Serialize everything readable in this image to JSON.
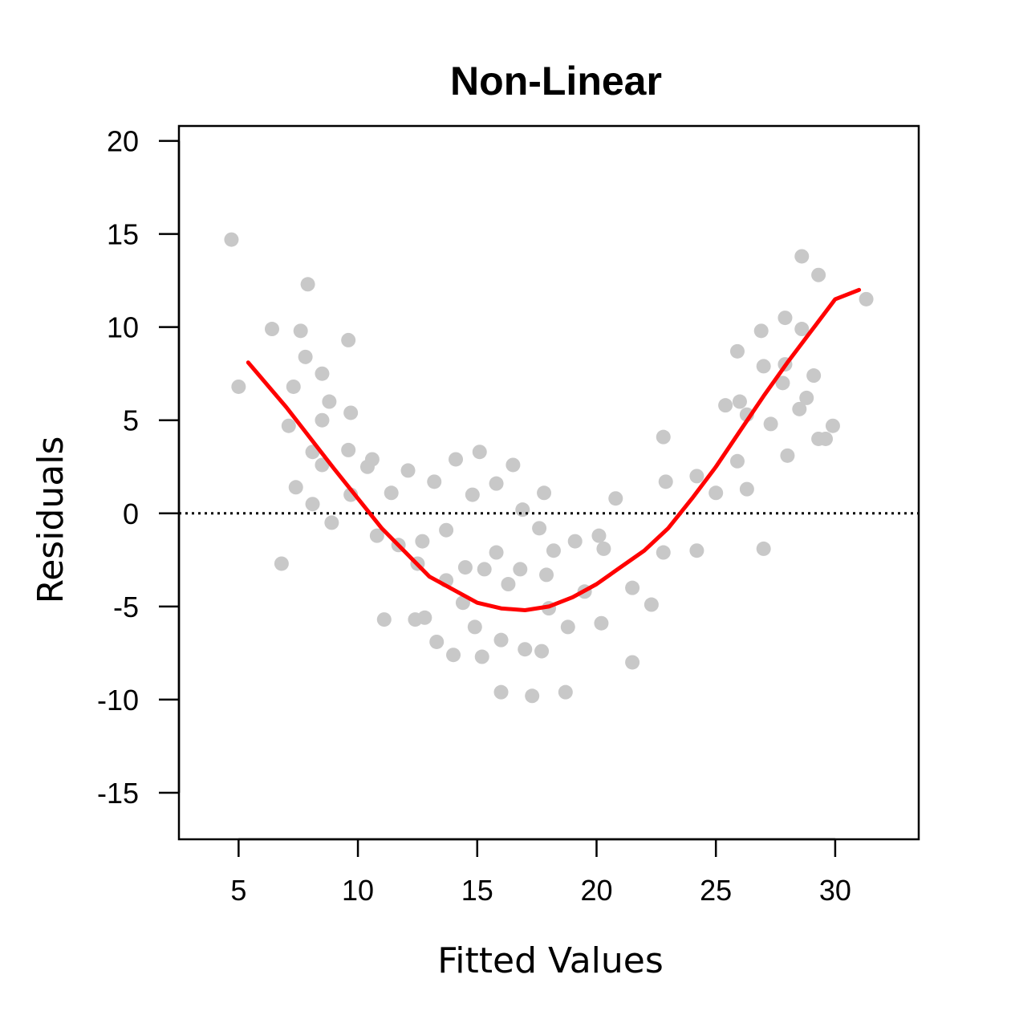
{
  "chart_data": {
    "type": "scatter",
    "title": "Non-Linear",
    "xlabel": "Fitted Values",
    "ylabel": "Residuals",
    "xlim": [
      2.5,
      33.5
    ],
    "ylim": [
      -17.5,
      20.8
    ],
    "x_ticks": [
      5,
      10,
      15,
      20,
      25,
      30
    ],
    "x_tick_labels": [
      "5",
      "10",
      "15",
      "20",
      "25",
      "30"
    ],
    "y_ticks": [
      -15,
      -10,
      -5,
      0,
      5,
      10,
      15,
      20
    ],
    "y_tick_labels": [
      "-15",
      "-10",
      "-5",
      "0",
      "5",
      "10",
      "15",
      "20"
    ],
    "grid": false,
    "legend": "none",
    "reference_line": {
      "y": 0,
      "style": "dotted",
      "color": "#000000"
    },
    "colors": {
      "points": "#c8c8c8",
      "smooth": "#ff0000",
      "axis": "#000000"
    },
    "points": [
      {
        "x": 4.7,
        "y": 14.7
      },
      {
        "x": 5.0,
        "y": 6.8
      },
      {
        "x": 6.4,
        "y": 9.9
      },
      {
        "x": 6.8,
        "y": -2.7
      },
      {
        "x": 7.1,
        "y": 4.7
      },
      {
        "x": 7.3,
        "y": 6.8
      },
      {
        "x": 7.4,
        "y": 1.4
      },
      {
        "x": 7.6,
        "y": 9.8
      },
      {
        "x": 7.8,
        "y": 8.4
      },
      {
        "x": 7.9,
        "y": 12.3
      },
      {
        "x": 8.1,
        "y": 3.3
      },
      {
        "x": 8.1,
        "y": 0.5
      },
      {
        "x": 8.5,
        "y": 7.5
      },
      {
        "x": 8.5,
        "y": 5.0
      },
      {
        "x": 8.5,
        "y": 2.6
      },
      {
        "x": 8.8,
        "y": 6.0
      },
      {
        "x": 8.9,
        "y": -0.5
      },
      {
        "x": 9.6,
        "y": 9.3
      },
      {
        "x": 9.6,
        "y": 3.4
      },
      {
        "x": 9.7,
        "y": 5.4
      },
      {
        "x": 9.7,
        "y": 1.0
      },
      {
        "x": 10.4,
        "y": 2.5
      },
      {
        "x": 10.6,
        "y": 2.9
      },
      {
        "x": 10.8,
        "y": -1.2
      },
      {
        "x": 11.1,
        "y": -5.7
      },
      {
        "x": 11.4,
        "y": 1.1
      },
      {
        "x": 11.7,
        "y": -1.7
      },
      {
        "x": 12.1,
        "y": 2.3
      },
      {
        "x": 12.4,
        "y": -5.7
      },
      {
        "x": 12.5,
        "y": -2.7
      },
      {
        "x": 12.7,
        "y": -1.5
      },
      {
        "x": 12.8,
        "y": -5.6
      },
      {
        "x": 13.2,
        "y": 1.7
      },
      {
        "x": 13.3,
        "y": -6.9
      },
      {
        "x": 13.7,
        "y": -3.6
      },
      {
        "x": 13.7,
        "y": -0.9
      },
      {
        "x": 14.0,
        "y": -7.6
      },
      {
        "x": 14.1,
        "y": 2.9
      },
      {
        "x": 14.4,
        "y": -4.8
      },
      {
        "x": 14.5,
        "y": -2.9
      },
      {
        "x": 14.8,
        "y": 1.0
      },
      {
        "x": 14.9,
        "y": -6.1
      },
      {
        "x": 15.1,
        "y": 3.3
      },
      {
        "x": 15.2,
        "y": -7.7
      },
      {
        "x": 15.3,
        "y": -3.0
      },
      {
        "x": 15.8,
        "y": -2.1
      },
      {
        "x": 15.8,
        "y": 1.6
      },
      {
        "x": 16.0,
        "y": -9.6
      },
      {
        "x": 16.0,
        "y": -6.8
      },
      {
        "x": 16.3,
        "y": -3.8
      },
      {
        "x": 16.5,
        "y": 2.6
      },
      {
        "x": 16.8,
        "y": -3.0
      },
      {
        "x": 16.9,
        "y": 0.2
      },
      {
        "x": 17.0,
        "y": -7.3
      },
      {
        "x": 17.3,
        "y": -9.8
      },
      {
        "x": 17.6,
        "y": -0.8
      },
      {
        "x": 17.7,
        "y": -7.4
      },
      {
        "x": 17.8,
        "y": 1.1
      },
      {
        "x": 17.9,
        "y": -3.3
      },
      {
        "x": 18.0,
        "y": -5.1
      },
      {
        "x": 18.2,
        "y": -2.0
      },
      {
        "x": 18.7,
        "y": -9.6
      },
      {
        "x": 18.8,
        "y": -6.1
      },
      {
        "x": 19.1,
        "y": -1.5
      },
      {
        "x": 19.5,
        "y": -4.2
      },
      {
        "x": 20.1,
        "y": -1.2
      },
      {
        "x": 20.2,
        "y": -5.9
      },
      {
        "x": 20.3,
        "y": -1.9
      },
      {
        "x": 20.8,
        "y": 0.8
      },
      {
        "x": 21.5,
        "y": -8.0
      },
      {
        "x": 21.5,
        "y": -4.0
      },
      {
        "x": 22.3,
        "y": -4.9
      },
      {
        "x": 22.8,
        "y": 4.1
      },
      {
        "x": 22.8,
        "y": -2.1
      },
      {
        "x": 22.9,
        "y": 1.7
      },
      {
        "x": 24.2,
        "y": 2.0
      },
      {
        "x": 24.2,
        "y": -2.0
      },
      {
        "x": 25.0,
        "y": 1.1
      },
      {
        "x": 25.4,
        "y": 5.8
      },
      {
        "x": 25.9,
        "y": 8.7
      },
      {
        "x": 25.9,
        "y": 2.8
      },
      {
        "x": 26.0,
        "y": 6.0
      },
      {
        "x": 26.3,
        "y": 5.3
      },
      {
        "x": 26.3,
        "y": 1.3
      },
      {
        "x": 26.9,
        "y": 9.8
      },
      {
        "x": 27.0,
        "y": 7.9
      },
      {
        "x": 27.0,
        "y": -1.9
      },
      {
        "x": 27.3,
        "y": 4.8
      },
      {
        "x": 27.8,
        "y": 7.0
      },
      {
        "x": 27.9,
        "y": 10.5
      },
      {
        "x": 27.9,
        "y": 8.0
      },
      {
        "x": 28.0,
        "y": 3.1
      },
      {
        "x": 28.5,
        "y": 5.6
      },
      {
        "x": 28.6,
        "y": 9.9
      },
      {
        "x": 28.6,
        "y": 13.8
      },
      {
        "x": 28.8,
        "y": 6.2
      },
      {
        "x": 29.1,
        "y": 7.4
      },
      {
        "x": 29.3,
        "y": 12.8
      },
      {
        "x": 29.3,
        "y": 4.0
      },
      {
        "x": 29.6,
        "y": 4.0
      },
      {
        "x": 29.9,
        "y": 4.7
      },
      {
        "x": 31.3,
        "y": 11.5
      }
    ],
    "smooth_line": {
      "x": [
        5.4,
        7.0,
        9.0,
        11.0,
        13.0,
        15.0,
        16.0,
        17.0,
        18.0,
        19.0,
        20.0,
        21.0,
        22.0,
        23.0,
        24.0,
        25.0,
        26.0,
        27.0,
        28.0,
        29.0,
        30.0,
        31.0
      ],
      "y": [
        8.1,
        5.7,
        2.4,
        -0.8,
        -3.4,
        -4.8,
        -5.1,
        -5.2,
        -5.0,
        -4.5,
        -3.8,
        -2.9,
        -2.0,
        -0.8,
        0.8,
        2.5,
        4.4,
        6.3,
        8.1,
        9.8,
        11.5,
        12.0
      ]
    }
  }
}
